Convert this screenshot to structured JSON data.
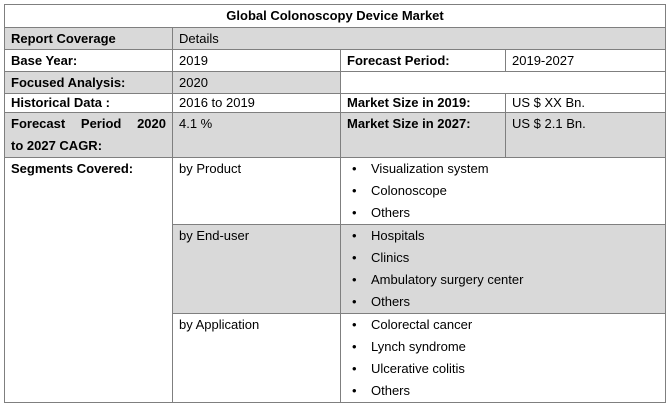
{
  "title": "Global Colonoscopy Device Market",
  "rows": {
    "coverage": {
      "label": "Report Coverage",
      "value": "Details"
    },
    "base_year": {
      "label": "Base Year:",
      "value": "2019",
      "label2": "Forecast Period:",
      "value2": "2019-2027"
    },
    "focused": {
      "label": "Focused Analysis:",
      "value": "2020"
    },
    "historical": {
      "label": "Historical Data :",
      "value": "2016 to 2019",
      "label2": "Market Size in 2019:",
      "value2": "US $ XX Bn."
    },
    "cagr": {
      "label_line1": "Forecast Period 2020",
      "label_line2": "to 2027 CAGR:",
      "value": "4.1 %",
      "label2": "Market Size in 2027:",
      "value2": "US $ 2.1 Bn."
    }
  },
  "segments": {
    "label": "Segments Covered:",
    "groups": [
      {
        "name": "by Product",
        "items": [
          "Visualization system",
          "Colonoscope",
          "Others"
        ]
      },
      {
        "name": "by End-user",
        "items": [
          "Hospitals",
          "Clinics",
          "Ambulatory surgery center",
          "Others"
        ]
      },
      {
        "name": "by Application",
        "items": [
          "Colorectal cancer",
          "Lynch syndrome",
          "Ulcerative colitis",
          "Others"
        ]
      }
    ]
  }
}
